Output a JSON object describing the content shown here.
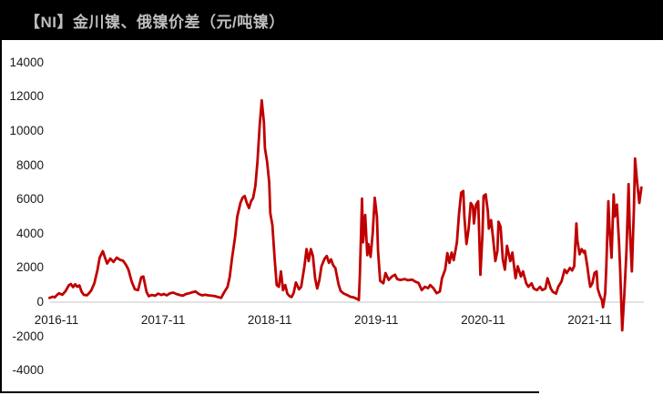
{
  "title_bar": {
    "title": "【NI】金川镍、俄镍价差（元/吨镍）",
    "bg_color": "#000000",
    "text_color": "#BDBDBD"
  },
  "chart_data": {
    "type": "line",
    "title": "【NI】金川镍、俄镍价差（元/吨镍）",
    "series_name": "金川镍-俄镍价差",
    "unit": "元/吨镍",
    "line_color": "#C00000",
    "axis_line_color": "#D9D9D9",
    "tick_label_color": "#1a1a1a",
    "grid": false,
    "legend_position": "none",
    "ylim": [
      -4000,
      14000
    ],
    "xlim": [
      2016.79,
      2022.42
    ],
    "yticks": [
      14000,
      12000,
      10000,
      8000,
      6000,
      4000,
      2000,
      0,
      -2000,
      -4000
    ],
    "xticks": [
      {
        "label": "2016-11",
        "x": 2016.875
      },
      {
        "label": "2017-11",
        "x": 2017.875
      },
      {
        "label": "2018-11",
        "x": 2018.875
      },
      {
        "label": "2019-11",
        "x": 2019.875
      },
      {
        "label": "2020-11",
        "x": 2020.875
      },
      {
        "label": "2021-11",
        "x": 2021.875
      }
    ],
    "points": [
      [
        2016.81,
        250
      ],
      [
        2016.84,
        320
      ],
      [
        2016.86,
        280
      ],
      [
        2016.88,
        420
      ],
      [
        2016.9,
        520
      ],
      [
        2016.93,
        430
      ],
      [
        2016.96,
        650
      ],
      [
        2016.99,
        980
      ],
      [
        2017.01,
        1060
      ],
      [
        2017.03,
        880
      ],
      [
        2017.05,
        1050
      ],
      [
        2017.07,
        900
      ],
      [
        2017.09,
        980
      ],
      [
        2017.11,
        620
      ],
      [
        2017.13,
        430
      ],
      [
        2017.16,
        400
      ],
      [
        2017.18,
        520
      ],
      [
        2017.2,
        680
      ],
      [
        2017.23,
        1100
      ],
      [
        2017.26,
        1900
      ],
      [
        2017.28,
        2600
      ],
      [
        2017.31,
        2980
      ],
      [
        2017.33,
        2600
      ],
      [
        2017.35,
        2260
      ],
      [
        2017.38,
        2550
      ],
      [
        2017.41,
        2350
      ],
      [
        2017.44,
        2600
      ],
      [
        2017.47,
        2480
      ],
      [
        2017.5,
        2420
      ],
      [
        2017.53,
        2150
      ],
      [
        2017.55,
        1900
      ],
      [
        2017.58,
        1200
      ],
      [
        2017.61,
        750
      ],
      [
        2017.64,
        700
      ],
      [
        2017.67,
        1450
      ],
      [
        2017.69,
        1500
      ],
      [
        2017.72,
        600
      ],
      [
        2017.74,
        350
      ],
      [
        2017.77,
        420
      ],
      [
        2017.8,
        380
      ],
      [
        2017.83,
        500
      ],
      [
        2017.86,
        420
      ],
      [
        2017.88,
        480
      ],
      [
        2017.91,
        400
      ],
      [
        2017.94,
        520
      ],
      [
        2017.97,
        560
      ],
      [
        2018.0,
        480
      ],
      [
        2018.03,
        420
      ],
      [
        2018.06,
        380
      ],
      [
        2018.09,
        480
      ],
      [
        2018.12,
        520
      ],
      [
        2018.15,
        580
      ],
      [
        2018.18,
        620
      ],
      [
        2018.21,
        480
      ],
      [
        2018.24,
        400
      ],
      [
        2018.27,
        430
      ],
      [
        2018.3,
        400
      ],
      [
        2018.33,
        380
      ],
      [
        2018.36,
        350
      ],
      [
        2018.39,
        300
      ],
      [
        2018.42,
        250
      ],
      [
        2018.44,
        500
      ],
      [
        2018.46,
        700
      ],
      [
        2018.48,
        900
      ],
      [
        2018.5,
        1500
      ],
      [
        2018.52,
        2500
      ],
      [
        2018.55,
        3800
      ],
      [
        2018.57,
        5000
      ],
      [
        2018.6,
        5800
      ],
      [
        2018.62,
        6100
      ],
      [
        2018.64,
        6200
      ],
      [
        2018.66,
        5800
      ],
      [
        2018.68,
        5500
      ],
      [
        2018.7,
        5900
      ],
      [
        2018.72,
        6100
      ],
      [
        2018.74,
        6800
      ],
      [
        2018.76,
        8200
      ],
      [
        2018.78,
        10300
      ],
      [
        2018.8,
        11800
      ],
      [
        2018.82,
        10500
      ],
      [
        2018.83,
        9000
      ],
      [
        2018.85,
        8200
      ],
      [
        2018.87,
        7000
      ],
      [
        2018.88,
        5200
      ],
      [
        2018.9,
        4500
      ],
      [
        2018.92,
        2600
      ],
      [
        2018.94,
        1000
      ],
      [
        2018.96,
        900
      ],
      [
        2018.98,
        1800
      ],
      [
        2019.0,
        700
      ],
      [
        2019.02,
        1000
      ],
      [
        2019.04,
        500
      ],
      [
        2019.06,
        350
      ],
      [
        2019.08,
        300
      ],
      [
        2019.1,
        550
      ],
      [
        2019.12,
        1150
      ],
      [
        2019.15,
        750
      ],
      [
        2019.17,
        900
      ],
      [
        2019.2,
        2100
      ],
      [
        2019.22,
        3100
      ],
      [
        2019.24,
        2400
      ],
      [
        2019.26,
        3100
      ],
      [
        2019.28,
        2700
      ],
      [
        2019.3,
        1400
      ],
      [
        2019.32,
        800
      ],
      [
        2019.34,
        1300
      ],
      [
        2019.36,
        2100
      ],
      [
        2019.39,
        2550
      ],
      [
        2019.41,
        2700
      ],
      [
        2019.43,
        2300
      ],
      [
        2019.45,
        2500
      ],
      [
        2019.47,
        2150
      ],
      [
        2019.49,
        2000
      ],
      [
        2019.52,
        1050
      ],
      [
        2019.54,
        650
      ],
      [
        2019.57,
        500
      ],
      [
        2019.6,
        420
      ],
      [
        2019.63,
        320
      ],
      [
        2019.66,
        280
      ],
      [
        2019.69,
        200
      ],
      [
        2019.71,
        120
      ],
      [
        2019.72,
        1500
      ],
      [
        2019.74,
        6050
      ],
      [
        2019.75,
        3500
      ],
      [
        2019.77,
        5100
      ],
      [
        2019.79,
        2750
      ],
      [
        2019.8,
        3400
      ],
      [
        2019.82,
        2650
      ],
      [
        2019.84,
        4000
      ],
      [
        2019.86,
        6100
      ],
      [
        2019.88,
        5000
      ],
      [
        2019.89,
        3000
      ],
      [
        2019.91,
        1250
      ],
      [
        2019.94,
        1100
      ],
      [
        2019.96,
        1700
      ],
      [
        2019.99,
        1300
      ],
      [
        2020.02,
        1500
      ],
      [
        2020.05,
        1600
      ],
      [
        2020.07,
        1350
      ],
      [
        2020.1,
        1300
      ],
      [
        2020.14,
        1350
      ],
      [
        2020.17,
        1280
      ],
      [
        2020.21,
        1320
      ],
      [
        2020.24,
        1200
      ],
      [
        2020.27,
        1120
      ],
      [
        2020.3,
        700
      ],
      [
        2020.33,
        900
      ],
      [
        2020.36,
        820
      ],
      [
        2020.38,
        1000
      ],
      [
        2020.41,
        820
      ],
      [
        2020.44,
        520
      ],
      [
        2020.47,
        620
      ],
      [
        2020.49,
        1400
      ],
      [
        2020.52,
        1900
      ],
      [
        2020.54,
        2870
      ],
      [
        2020.56,
        2300
      ],
      [
        2020.58,
        2900
      ],
      [
        2020.6,
        2450
      ],
      [
        2020.63,
        3500
      ],
      [
        2020.65,
        5200
      ],
      [
        2020.67,
        6400
      ],
      [
        2020.69,
        6500
      ],
      [
        2020.7,
        5000
      ],
      [
        2020.72,
        3400
      ],
      [
        2020.74,
        4300
      ],
      [
        2020.76,
        5800
      ],
      [
        2020.78,
        5600
      ],
      [
        2020.79,
        4600
      ],
      [
        2020.81,
        5700
      ],
      [
        2020.83,
        5900
      ],
      [
        2020.85,
        1600
      ],
      [
        2020.87,
        4000
      ],
      [
        2020.88,
        6200
      ],
      [
        2020.9,
        6300
      ],
      [
        2020.92,
        5300
      ],
      [
        2020.93,
        4300
      ],
      [
        2020.95,
        4800
      ],
      [
        2020.97,
        3700
      ],
      [
        2020.99,
        2400
      ],
      [
        2021.01,
        3000
      ],
      [
        2021.02,
        4700
      ],
      [
        2021.04,
        4400
      ],
      [
        2021.06,
        2500
      ],
      [
        2021.08,
        1900
      ],
      [
        2021.1,
        3300
      ],
      [
        2021.13,
        2400
      ],
      [
        2021.15,
        2900
      ],
      [
        2021.18,
        1400
      ],
      [
        2021.2,
        2100
      ],
      [
        2021.23,
        1500
      ],
      [
        2021.25,
        1800
      ],
      [
        2021.28,
        1100
      ],
      [
        2021.3,
        900
      ],
      [
        2021.33,
        1100
      ],
      [
        2021.35,
        800
      ],
      [
        2021.38,
        700
      ],
      [
        2021.41,
        900
      ],
      [
        2021.43,
        700
      ],
      [
        2021.46,
        800
      ],
      [
        2021.48,
        1400
      ],
      [
        2021.51,
        800
      ],
      [
        2021.53,
        600
      ],
      [
        2021.56,
        500
      ],
      [
        2021.58,
        900
      ],
      [
        2021.61,
        1200
      ],
      [
        2021.64,
        1900
      ],
      [
        2021.66,
        1700
      ],
      [
        2021.69,
        2000
      ],
      [
        2021.71,
        1850
      ],
      [
        2021.73,
        2100
      ],
      [
        2021.75,
        4600
      ],
      [
        2021.76,
        3600
      ],
      [
        2021.78,
        2800
      ],
      [
        2021.8,
        3100
      ],
      [
        2021.82,
        2900
      ],
      [
        2021.83,
        3000
      ],
      [
        2021.85,
        2200
      ],
      [
        2021.87,
        1300
      ],
      [
        2021.88,
        900
      ],
      [
        2021.9,
        1100
      ],
      [
        2021.92,
        1700
      ],
      [
        2021.94,
        1800
      ],
      [
        2021.95,
        800
      ],
      [
        2021.97,
        400
      ],
      [
        2021.99,
        100
      ],
      [
        2022.0,
        -300
      ],
      [
        2022.02,
        500
      ],
      [
        2022.03,
        2000
      ],
      [
        2022.05,
        5900
      ],
      [
        2022.06,
        4400
      ],
      [
        2022.08,
        2600
      ],
      [
        2022.1,
        6300
      ],
      [
        2022.11,
        5000
      ],
      [
        2022.13,
        5700
      ],
      [
        2022.15,
        3500
      ],
      [
        2022.16,
        2000
      ],
      [
        2022.18,
        -1650
      ],
      [
        2022.2,
        500
      ],
      [
        2022.22,
        3000
      ],
      [
        2022.24,
        6900
      ],
      [
        2022.25,
        4500
      ],
      [
        2022.27,
        1800
      ],
      [
        2022.29,
        5500
      ],
      [
        2022.3,
        8400
      ],
      [
        2022.32,
        7000
      ],
      [
        2022.34,
        5800
      ],
      [
        2022.36,
        6700
      ]
    ]
  }
}
